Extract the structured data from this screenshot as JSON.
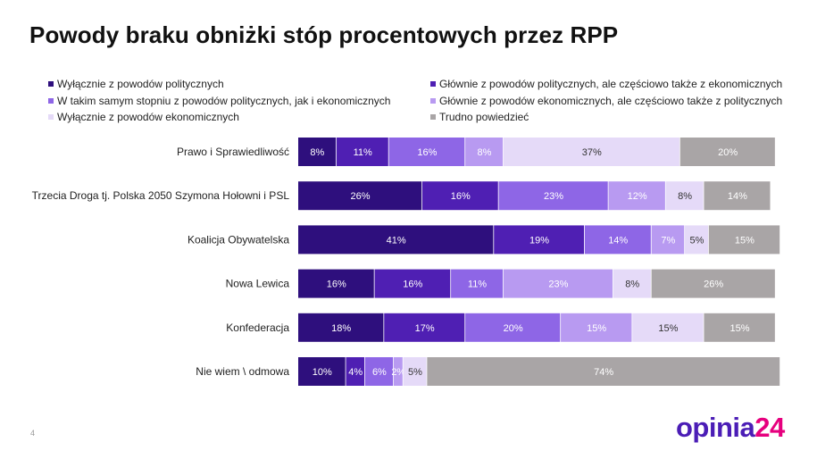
{
  "title": "Powody braku obniżki stóp procentowych przez RPP",
  "page_number": "4",
  "logo": {
    "word": "opinia",
    "number": "24"
  },
  "chart_data": {
    "type": "bar",
    "orientation": "horizontal",
    "stacked": true,
    "title": "Powody braku obniżki stóp procentowych przez RPP",
    "legend_position": "top",
    "categories": [
      "Prawo i Sprawiedliwość",
      "Trzecia Droga tj. Polska 2050 Szymona Hołowni i PSL",
      "Koalicja Obywatelska",
      "Nowa Lewica",
      "Konfederacja",
      "Nie wiem \\ odmowa"
    ],
    "series": [
      {
        "name": "Wyłącznie z powodów politycznych",
        "color": "#2e0f7d",
        "text_color": "#ffffff",
        "values": [
          8,
          26,
          41,
          16,
          18,
          10
        ]
      },
      {
        "name": "Głównie z powodów politycznych, ale częściowo także z ekonomicznych",
        "color": "#4f1fb3",
        "text_color": "#ffffff",
        "values": [
          11,
          16,
          19,
          16,
          17,
          4
        ]
      },
      {
        "name": "W takim samym stopniu z powodów politycznych, jak i ekonomicznych",
        "color": "#8e66e6",
        "text_color": "#ffffff",
        "values": [
          16,
          23,
          14,
          11,
          20,
          6
        ]
      },
      {
        "name": "Głównie z powodów ekonomicznych, ale częściowo także z politycznych",
        "color": "#b89af1",
        "text_color": "#ffffff",
        "values": [
          8,
          12,
          7,
          23,
          15,
          2
        ]
      },
      {
        "name": "Wyłącznie z powodów ekonomicznych",
        "color": "#e5daf8",
        "text_color": "#333333",
        "values": [
          37,
          8,
          5,
          8,
          15,
          5
        ]
      },
      {
        "name": "Trudno powiedzieć",
        "color": "#a9a5a6",
        "text_color": "#ffffff",
        "values": [
          20,
          14,
          15,
          26,
          15,
          74
        ]
      }
    ],
    "value_labels": [
      [
        "8%",
        "11%",
        "16%",
        "8%",
        "37%",
        "20%"
      ],
      [
        "26%",
        "16%",
        "23%",
        "12%",
        "8%",
        "14%"
      ],
      [
        "41%",
        "19%",
        "14%",
        "7%",
        "5%",
        "15%"
      ],
      [
        "16%",
        "16%",
        "11%",
        "23%",
        "8%",
        "26%"
      ],
      [
        "18%",
        "17%",
        "20%",
        "15%",
        "15%",
        "15%"
      ],
      [
        "10%",
        "4%",
        "6%",
        "2%",
        "5%",
        "74%"
      ]
    ],
    "xlim": [
      0,
      101
    ]
  }
}
